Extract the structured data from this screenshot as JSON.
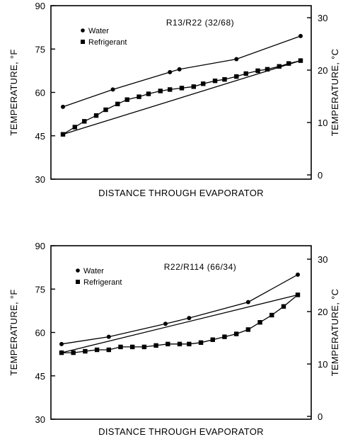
{
  "chart_data": [
    {
      "type": "line",
      "title": "R13/R22 (32/68)",
      "xlabel": "DISTANCE THROUGH EVAPORATOR",
      "ylabel": "TEMPERATURE, °F",
      "ylabel_right": "TEMPERATURE, °C",
      "ylim": [
        30,
        90
      ],
      "yticks": [
        "90",
        "75",
        "60",
        "45",
        "30"
      ],
      "yticks_right": [
        "30",
        "20",
        "10",
        "0"
      ],
      "xlim": [
        0,
        100
      ],
      "legend_position": "top-left",
      "series": [
        {
          "name": "Water",
          "marker": "circle",
          "x": [
            0,
            21,
            45,
            49,
            73,
            100
          ],
          "y": [
            55,
            61,
            67,
            68,
            71.5,
            79.5
          ]
        },
        {
          "name": "Refrigerant",
          "marker": "square",
          "x": [
            0,
            5,
            9,
            14,
            18,
            23,
            27,
            32,
            36,
            41,
            45,
            50,
            55,
            59,
            64,
            68,
            73,
            77,
            82,
            86,
            91,
            95,
            100
          ],
          "y": [
            45.5,
            48,
            50,
            52,
            54,
            56,
            57.5,
            58.5,
            59.5,
            60.5,
            61,
            61.5,
            62,
            63,
            64,
            64.5,
            65.5,
            66.5,
            67.5,
            68,
            69,
            70,
            71
          ]
        },
        {
          "marker": "none",
          "x": [
            0,
            100
          ],
          "y": [
            45.5,
            71
          ]
        }
      ]
    },
    {
      "type": "line",
      "title": "R22/R114 (66/34)",
      "xlabel": "DISTANCE THROUGH EVAPORATOR",
      "ylabel": "TEMPERATURE, °F",
      "ylabel_right": "TEMPERATURE, °C",
      "ylim": [
        30,
        90
      ],
      "yticks": [
        "90",
        "75",
        "60",
        "45",
        "30"
      ],
      "yticks_right": [
        "30",
        "20",
        "10",
        "0"
      ],
      "xlim": [
        0,
        100
      ],
      "legend_position": "top-left",
      "series": [
        {
          "name": "Water",
          "marker": "circle",
          "x": [
            0,
            20,
            44,
            54,
            79,
            100
          ],
          "y": [
            56,
            58.5,
            63,
            65,
            70.5,
            80
          ]
        },
        {
          "name": "Refrigerant",
          "marker": "square",
          "x": [
            0,
            5,
            10,
            15,
            20,
            25,
            30,
            35,
            40,
            45,
            50,
            54,
            59,
            64,
            69,
            74,
            79,
            84,
            89,
            94,
            100
          ],
          "y": [
            53,
            53,
            53.5,
            54,
            54,
            55,
            55,
            55,
            55.5,
            56,
            56,
            56,
            56.5,
            57.5,
            58.5,
            59.5,
            61,
            63.5,
            66,
            69,
            73
          ]
        },
        {
          "marker": "none",
          "x": [
            0,
            100
          ],
          "y": [
            53,
            73
          ]
        }
      ]
    }
  ]
}
